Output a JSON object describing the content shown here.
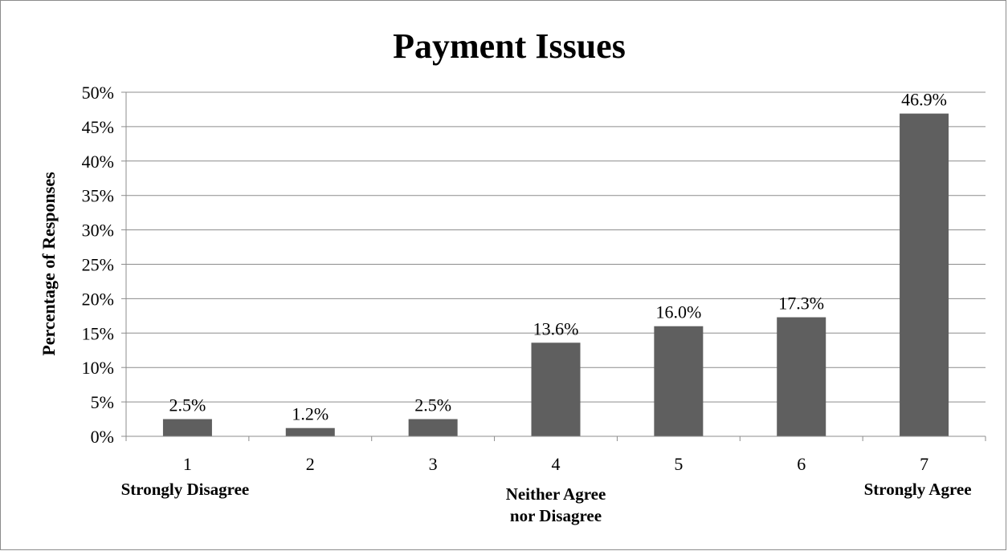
{
  "chart_data": {
    "type": "bar",
    "title": "Payment Issues",
    "xlabel": "",
    "ylabel": "Percentage of Responses",
    "categories": [
      "1",
      "2",
      "3",
      "4",
      "5",
      "6",
      "7"
    ],
    "category_sublabels": [
      "Strongly Disagree",
      "",
      "",
      "Neither Agree\nnor Disagree",
      "",
      "",
      "Strongly Agree"
    ],
    "values": [
      2.5,
      1.2,
      2.5,
      13.6,
      16.0,
      17.3,
      46.9
    ],
    "data_labels": [
      "2.5%",
      "1.2%",
      "2.5%",
      "13.6%",
      "16.0%",
      "17.3%",
      "46.9%"
    ],
    "ylim": [
      0,
      50
    ],
    "yticks": [
      0,
      5,
      10,
      15,
      20,
      25,
      30,
      35,
      40,
      45,
      50
    ],
    "ytick_labels": [
      "0%",
      "5%",
      "10%",
      "15%",
      "20%",
      "25%",
      "30%",
      "35%",
      "40%",
      "45%",
      "50%"
    ],
    "grid": true,
    "legend": "none",
    "bar_color": "#5f5f5f",
    "grid_color": "#8c8c8c"
  }
}
